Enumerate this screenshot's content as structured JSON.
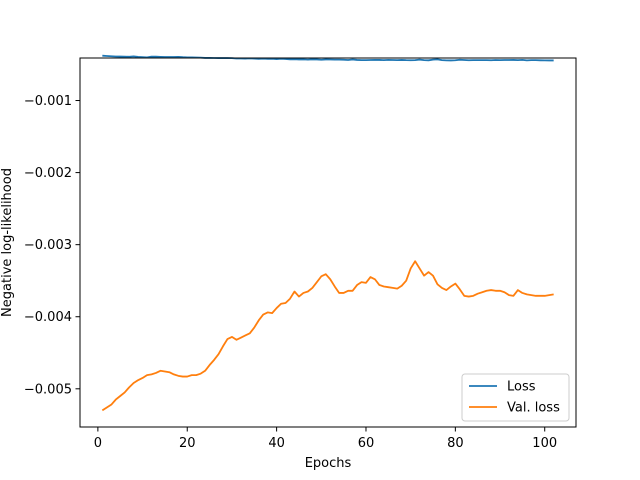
{
  "chart_data": {
    "type": "line",
    "title": "",
    "xlabel": "Epochs",
    "ylabel": "Negative log-likelihood",
    "xlim": [
      -4,
      107
    ],
    "ylim": [
      -0.00553,
      -0.00041
    ],
    "xticks": [
      0,
      20,
      40,
      60,
      80,
      100
    ],
    "xtick_labels": [
      "0",
      "20",
      "40",
      "60",
      "80",
      "100"
    ],
    "yticks": [
      -0.001,
      -0.002,
      -0.003,
      -0.004,
      -0.005
    ],
    "ytick_labels": [
      "−0.001",
      "−0.002",
      "−0.003",
      "−0.004",
      "−0.005"
    ],
    "grid": false,
    "legend_position": "lower-right",
    "series": [
      {
        "name": "Loss",
        "color": "#1f77b4",
        "x": [
          1,
          2,
          3,
          4,
          5,
          6,
          7,
          8,
          9,
          10,
          11,
          12,
          13,
          14,
          15,
          16,
          17,
          18,
          19,
          20,
          21,
          22,
          23,
          24,
          25,
          26,
          27,
          28,
          29,
          30,
          31,
          32,
          33,
          34,
          35,
          36,
          37,
          38,
          39,
          40,
          41,
          42,
          43,
          44,
          45,
          46,
          47,
          48,
          49,
          50,
          51,
          52,
          53,
          54,
          55,
          56,
          57,
          58,
          59,
          60,
          61,
          62,
          63,
          64,
          65,
          66,
          67,
          68,
          69,
          70,
          71,
          72,
          73,
          74,
          75,
          76,
          77,
          78,
          79,
          80,
          81,
          82,
          83,
          84,
          85,
          86,
          87,
          88,
          89,
          90,
          91,
          92,
          93,
          94,
          95,
          96,
          97,
          98,
          99,
          100,
          101,
          102
        ],
        "values": [
          -0.000378,
          -0.000382,
          -0.000386,
          -0.000389,
          -0.00039,
          -0.000391,
          -0.000393,
          -0.000388,
          -0.000395,
          -0.000398,
          -0.000402,
          -0.000392,
          -0.000391,
          -0.000394,
          -0.000396,
          -0.000397,
          -0.000397,
          -0.000395,
          -0.000399,
          -0.000401,
          -0.000402,
          -0.000403,
          -0.000405,
          -0.000409,
          -0.000408,
          -0.00041,
          -0.000411,
          -0.00041,
          -0.000411,
          -0.000412,
          -0.000417,
          -0.000416,
          -0.000419,
          -0.000415,
          -0.000418,
          -0.000421,
          -0.000419,
          -0.000422,
          -0.000421,
          -0.000426,
          -0.00042,
          -0.000424,
          -0.000428,
          -0.000427,
          -0.00043,
          -0.000429,
          -0.000432,
          -0.000428,
          -0.00043,
          -0.000434,
          -0.00043,
          -0.000431,
          -0.000433,
          -0.000432,
          -0.000434,
          -0.000438,
          -0.000431,
          -0.000437,
          -0.000439,
          -0.00044,
          -0.000438,
          -0.000436,
          -0.000437,
          -0.00044,
          -0.000436,
          -0.000438,
          -0.000439,
          -0.000437,
          -0.00044,
          -0.000441,
          -0.000439,
          -0.000433,
          -0.00044,
          -0.000442,
          -0.000433,
          -0.000429,
          -0.000439,
          -0.000443,
          -0.000444,
          -0.000441,
          -0.000434,
          -0.000438,
          -0.000441,
          -0.00044,
          -0.000439,
          -0.00044,
          -0.00044,
          -0.000441,
          -0.000438,
          -0.00044,
          -0.000438,
          -0.000438,
          -0.000437,
          -0.00044,
          -0.000436,
          -0.000443,
          -0.000439,
          -0.00044,
          -0.000442,
          -0.000443,
          -0.000444,
          -0.000444
        ]
      },
      {
        "name": "Val. loss",
        "color": "#ff7f0e",
        "x": [
          1,
          2,
          3,
          4,
          5,
          6,
          7,
          8,
          9,
          10,
          11,
          12,
          13,
          14,
          15,
          16,
          17,
          18,
          19,
          20,
          21,
          22,
          23,
          24,
          25,
          26,
          27,
          28,
          29,
          30,
          31,
          32,
          33,
          34,
          35,
          36,
          37,
          38,
          39,
          40,
          41,
          42,
          43,
          44,
          45,
          46,
          47,
          48,
          49,
          50,
          51,
          52,
          53,
          54,
          55,
          56,
          57,
          58,
          59,
          60,
          61,
          62,
          63,
          64,
          65,
          66,
          67,
          68,
          69,
          70,
          71,
          72,
          73,
          74,
          75,
          76,
          77,
          78,
          79,
          80,
          81,
          82,
          83,
          84,
          85,
          86,
          87,
          88,
          89,
          90,
          91,
          92,
          93,
          94,
          95,
          96,
          97,
          98,
          99,
          100,
          101,
          102
        ],
        "values": [
          -0.0053,
          -0.00526,
          -0.00522,
          -0.00515,
          -0.0051,
          -0.00505,
          -0.00498,
          -0.00492,
          -0.00488,
          -0.00485,
          -0.00481,
          -0.0048,
          -0.00478,
          -0.00475,
          -0.00476,
          -0.00477,
          -0.0048,
          -0.00482,
          -0.00483,
          -0.00483,
          -0.00481,
          -0.00481,
          -0.00479,
          -0.00475,
          -0.00467,
          -0.0046,
          -0.00452,
          -0.00441,
          -0.00431,
          -0.00428,
          -0.00432,
          -0.00429,
          -0.00426,
          -0.00423,
          -0.00415,
          -0.00405,
          -0.00397,
          -0.00394,
          -0.00395,
          -0.00388,
          -0.00382,
          -0.00381,
          -0.00375,
          -0.00365,
          -0.00372,
          -0.00367,
          -0.00365,
          -0.0036,
          -0.00352,
          -0.00344,
          -0.00341,
          -0.00348,
          -0.00358,
          -0.00367,
          -0.00367,
          -0.00364,
          -0.00364,
          -0.00356,
          -0.00352,
          -0.00353,
          -0.00345,
          -0.00348,
          -0.00356,
          -0.00358,
          -0.00359,
          -0.0036,
          -0.00361,
          -0.00357,
          -0.0035,
          -0.00333,
          -0.00323,
          -0.00333,
          -0.00343,
          -0.00338,
          -0.00343,
          -0.00355,
          -0.0036,
          -0.00363,
          -0.00358,
          -0.00354,
          -0.00362,
          -0.00371,
          -0.00372,
          -0.00371,
          -0.00368,
          -0.00366,
          -0.00364,
          -0.00363,
          -0.00364,
          -0.00364,
          -0.00366,
          -0.0037,
          -0.00371,
          -0.00363,
          -0.00367,
          -0.00369,
          -0.0037,
          -0.00371,
          -0.00371,
          -0.00371,
          -0.0037,
          -0.00369
        ]
      }
    ]
  }
}
